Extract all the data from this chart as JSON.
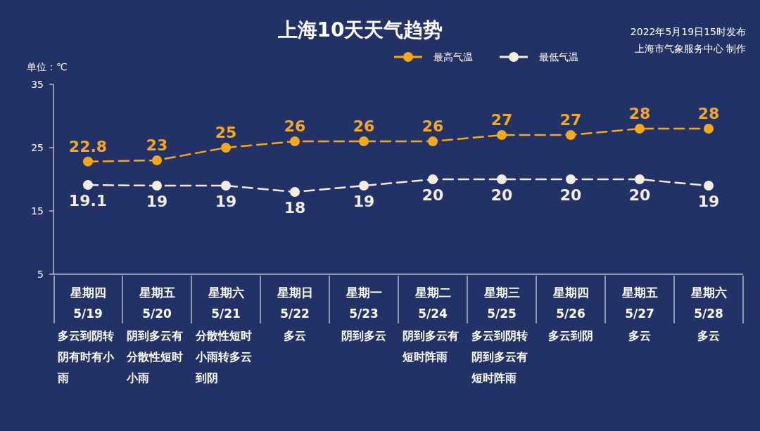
{
  "chart_data": {
    "type": "line",
    "title": "上海10天天气趋势",
    "ylabel": "单位：℃",
    "categories": [
      "星期四\n5/19",
      "星期五\n5/20",
      "星期六\n5/21",
      "星期日\n5/22",
      "星期一\n5/23",
      "星期二\n5/24",
      "星期三\n5/25",
      "星期四\n5/26",
      "星期五\n5/27",
      "星期六\n5/28"
    ],
    "series": [
      {
        "name": "最高气温",
        "color": "#f5a81c",
        "values": [
          22.8,
          23,
          25,
          26,
          26,
          26,
          27,
          27,
          28,
          28
        ]
      },
      {
        "name": "最低气温",
        "color": "#f2ede4",
        "values": [
          19.1,
          19,
          19,
          18,
          19,
          20,
          20,
          20,
          20,
          19
        ]
      }
    ],
    "ylim": [
      5,
      35
    ],
    "yticks": [
      5,
      15,
      25,
      35
    ],
    "grid": false,
    "legend": "top",
    "marker": "circle",
    "line_style": "dashed",
    "data_labels": true,
    "annotations": [
      "2022年5月19日15时发布",
      "上海市气象服务中心 制作",
      "多云到阴转阴有时有小雨",
      "阴到多云有分散性短时小雨",
      "分散性短时小雨转多云到阴",
      "多云",
      "阴到多云",
      "阴到多云有短时阵雨",
      "多云到阴转阴到多云有短时阵雨",
      "多云到阴",
      "多云",
      "多云"
    ]
  }
}
